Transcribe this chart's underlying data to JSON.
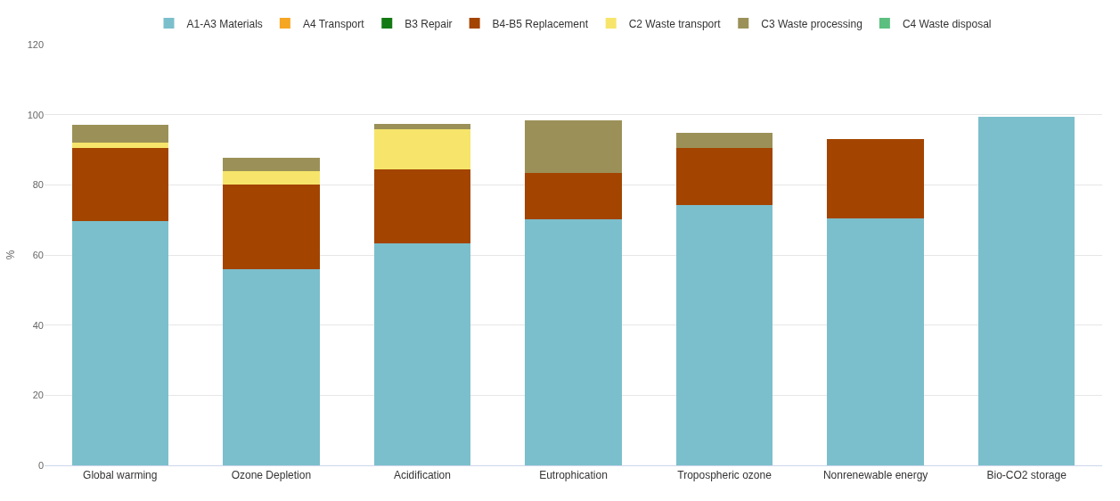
{
  "chart_data": {
    "type": "bar",
    "stacked": true,
    "ylabel": "%",
    "categories": [
      "Global warming",
      "Ozone Depletion",
      "Acidification",
      "Eutrophication",
      "Tropospheric ozone",
      "Nonrenewable energy",
      "Bio-CO2 storage"
    ],
    "series": [
      {
        "name": "A1-A3 Materials",
        "color": "#7bbfcc",
        "values": [
          69.6,
          56,
          63.4,
          70.2,
          74.3,
          70.5,
          99.5
        ]
      },
      {
        "name": "A4 Transport",
        "color": "#f5a623",
        "values": [
          null,
          null,
          null,
          null,
          null,
          null,
          null
        ]
      },
      {
        "name": "B3 Repair",
        "color": "#137a13",
        "values": [
          null,
          null,
          null,
          null,
          null,
          null,
          null
        ]
      },
      {
        "name": "B4-B5 Replacement",
        "color": "#a34400",
        "values": [
          21,
          24,
          21,
          13.2,
          16.2,
          22.5,
          0
        ]
      },
      {
        "name": "C2 Waste transport",
        "color": "#f6e56a",
        "values": [
          1.4,
          4,
          11.5,
          0,
          0,
          0,
          0
        ]
      },
      {
        "name": "C3 Waste processing",
        "color": "#9b9158",
        "values": [
          5,
          3.7,
          1.5,
          15,
          4.4,
          0,
          0
        ]
      },
      {
        "name": "C4 Waste disposal",
        "color": "#5cbf7f",
        "values": [
          null,
          null,
          null,
          null,
          null,
          null,
          null
        ]
      }
    ],
    "ylim": [
      0,
      120
    ],
    "yticks": [
      0,
      20,
      40,
      60,
      80,
      100,
      120
    ],
    "grid": "y",
    "legend": "top"
  }
}
